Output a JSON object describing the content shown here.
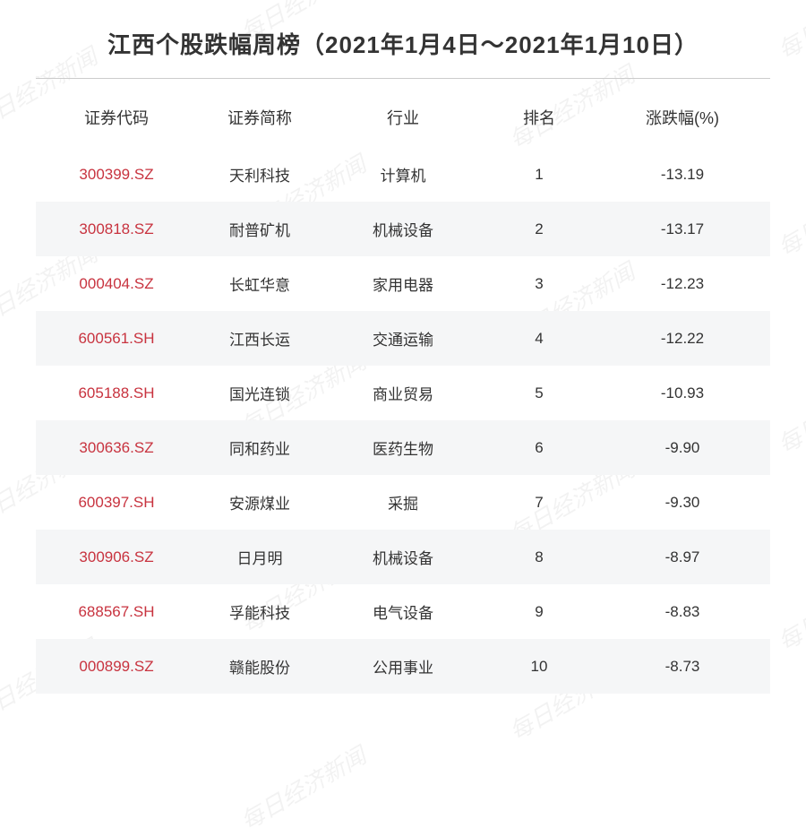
{
  "title": "江西个股跌幅周榜（2021年1月4日～2021年1月10日）",
  "watermark_text": "每日经济新闻",
  "table": {
    "type": "table",
    "background_color": "#ffffff",
    "alt_row_color": "#f5f6f7",
    "code_color": "#c8333f",
    "text_color": "#333333",
    "header_fontsize": 18,
    "cell_fontsize": 17,
    "columns": [
      {
        "key": "code",
        "label": "证券代码",
        "width": "20%"
      },
      {
        "key": "name",
        "label": "证券简称",
        "width": "20%"
      },
      {
        "key": "industry",
        "label": "行业",
        "width": "20%"
      },
      {
        "key": "rank",
        "label": "排名",
        "width": "18%"
      },
      {
        "key": "change",
        "label": "涨跌幅(%)",
        "width": "22%"
      }
    ],
    "rows": [
      {
        "code": "300399.SZ",
        "name": "天利科技",
        "industry": "计算机",
        "rank": "1",
        "change": "-13.19"
      },
      {
        "code": "300818.SZ",
        "name": "耐普矿机",
        "industry": "机械设备",
        "rank": "2",
        "change": "-13.17"
      },
      {
        "code": "000404.SZ",
        "name": "长虹华意",
        "industry": "家用电器",
        "rank": "3",
        "change": "-12.23"
      },
      {
        "code": "600561.SH",
        "name": "江西长运",
        "industry": "交通运输",
        "rank": "4",
        "change": "-12.22"
      },
      {
        "code": "605188.SH",
        "name": "国光连锁",
        "industry": "商业贸易",
        "rank": "5",
        "change": "-10.93"
      },
      {
        "code": "300636.SZ",
        "name": "同和药业",
        "industry": "医药生物",
        "rank": "6",
        "change": "-9.90"
      },
      {
        "code": "600397.SH",
        "name": "安源煤业",
        "industry": "采掘",
        "rank": "7",
        "change": "-9.30"
      },
      {
        "code": "300906.SZ",
        "name": "日月明",
        "industry": "机械设备",
        "rank": "8",
        "change": "-8.97"
      },
      {
        "code": "688567.SH",
        "name": "孚能科技",
        "industry": "电气设备",
        "rank": "9",
        "change": "-8.83"
      },
      {
        "code": "000899.SZ",
        "name": "赣能股份",
        "industry": "公用事业",
        "rank": "10",
        "change": "-8.73"
      }
    ]
  }
}
